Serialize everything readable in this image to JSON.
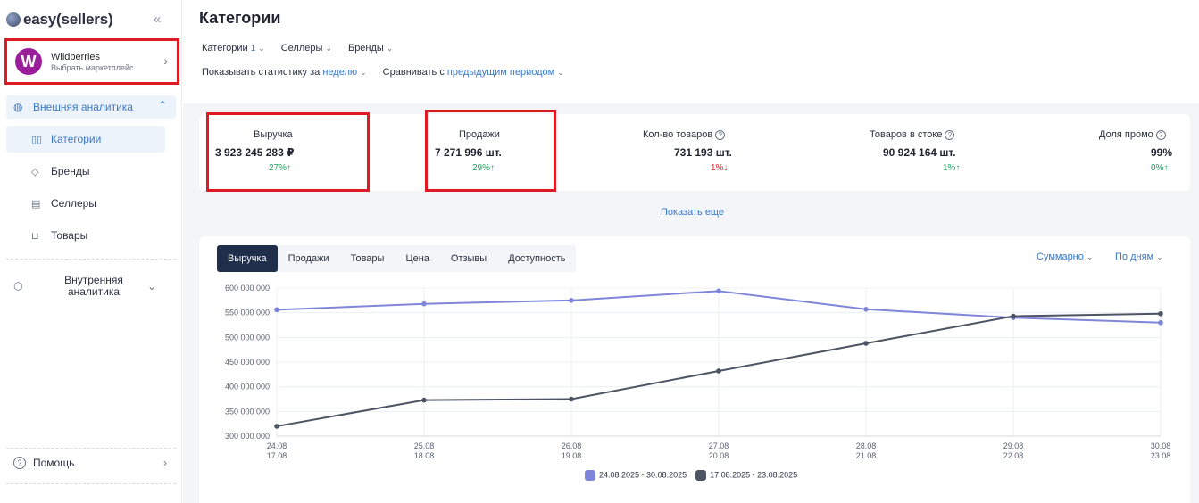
{
  "sidebar": {
    "logo": "easy(sellers)",
    "collapse_icon": "«",
    "marketplace": {
      "avatar": "W",
      "name": "Wildberries",
      "sub": "Выбрать маркетплейс"
    },
    "external_group": "Внешняя аналитика",
    "items": [
      {
        "label": "Категории",
        "icon": "categories-icon"
      },
      {
        "label": "Бренды",
        "icon": "tag-icon"
      },
      {
        "label": "Селлеры",
        "icon": "store-icon"
      },
      {
        "label": "Товары",
        "icon": "cart-icon"
      }
    ],
    "internal_group": "Внутренняя аналитика",
    "help": "Помощь"
  },
  "header": {
    "title": "Категории",
    "filters": {
      "categories": "Категории",
      "categories_count": "1",
      "sellers": "Селлеры",
      "brands": "Бренды"
    },
    "stats_prefix": "Показывать статистику за",
    "stats_period": "неделю",
    "compare_prefix": "Сравнивать с",
    "compare_period": "предыдущим периодом"
  },
  "kpis": [
    {
      "label": "Выручка",
      "value": "3 923 245 283 ₽",
      "delta": "27%",
      "trend": "up"
    },
    {
      "label": "Продажи",
      "value": "7 271 996 шт.",
      "delta": "29%",
      "trend": "up"
    },
    {
      "label": "Кол-во товаров",
      "value": "731 193 шт.",
      "delta": "1%",
      "trend": "down"
    },
    {
      "label": "Товаров в стоке",
      "value": "90 924 164 шт.",
      "delta": "1%",
      "trend": "up"
    },
    {
      "label": "Доля промо",
      "value": "99%",
      "delta": "0%",
      "trend": "up"
    }
  ],
  "show_more": "Показать еще",
  "chart_tabs": [
    "Выручка",
    "Продажи",
    "Товары",
    "Цена",
    "Отзывы",
    "Доступность"
  ],
  "chart_controls": {
    "aggregate": "Суммарно",
    "granularity": "По дням"
  },
  "colors": {
    "accent": "#3a78c9",
    "series_current": "#7f86d9",
    "series_previous": "#4d5564",
    "up": "#1aa35a",
    "down": "#e01a22"
  },
  "chart_data": {
    "type": "line",
    "y_ticks": [
      "600 000 000",
      "550 000 000",
      "500 000 000",
      "450 000 000",
      "400 000 000",
      "350 000 000",
      "300 000 000"
    ],
    "ylim": [
      300000000,
      600000000
    ],
    "categories": [
      {
        "primary": "24.08",
        "secondary": "17.08"
      },
      {
        "primary": "25.08",
        "secondary": "18.08"
      },
      {
        "primary": "26.08",
        "secondary": "19.08"
      },
      {
        "primary": "27.08",
        "secondary": "20.08"
      },
      {
        "primary": "28.08",
        "secondary": "21.08"
      },
      {
        "primary": "29.08",
        "secondary": "22.08"
      },
      {
        "primary": "30.08",
        "secondary": "23.08"
      }
    ],
    "series": [
      {
        "name": "24.08.2025 - 30.08.2025",
        "values": [
          556000000,
          568000000,
          575000000,
          594000000,
          557000000,
          540000000,
          530000000
        ]
      },
      {
        "name": "17.08.2025 - 23.08.2025",
        "values": [
          320000000,
          373000000,
          375000000,
          432000000,
          488000000,
          543000000,
          548000000
        ]
      }
    ],
    "grid": true,
    "legend": "bottom-center"
  }
}
